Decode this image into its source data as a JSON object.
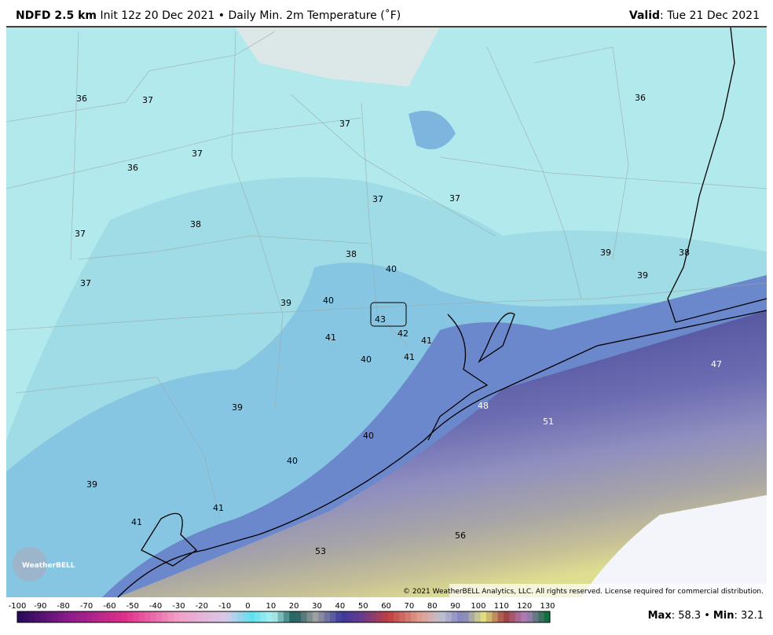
{
  "header": {
    "product": "NDFD 2.5 km",
    "init": "Init 12z 20 Dec 2021",
    "separator": "•",
    "field": "Daily Min. 2m Temperature (˚F)",
    "valid_label": "Valid",
    "valid_value": ": Tue 21 Dec 2021"
  },
  "map": {
    "labels": [
      36,
      37,
      37,
      36,
      37,
      36,
      37,
      37,
      38,
      37,
      38,
      39,
      38,
      40,
      39,
      37,
      39,
      40,
      43,
      42,
      41,
      41,
      40,
      41,
      47,
      48,
      51,
      39,
      40,
      40,
      39,
      41,
      41,
      56,
      53
    ],
    "copyright": "© 2021 WeatherBELL Analytics, LLC. All rights reserved. License required for commercial distribution.",
    "logo": "WeatherBELL"
  },
  "colorbar": {
    "ticks": [
      -100,
      -90,
      -80,
      -70,
      -60,
      -50,
      -40,
      -30,
      -20,
      -10,
      0,
      10,
      20,
      30,
      40,
      50,
      60,
      70,
      80,
      90,
      100,
      110,
      120,
      130
    ]
  },
  "footer": {
    "max_label": "Max",
    "max_value": ": 58.3",
    "separator": "•",
    "min_label": "Min",
    "min_value": ": 32.1"
  }
}
